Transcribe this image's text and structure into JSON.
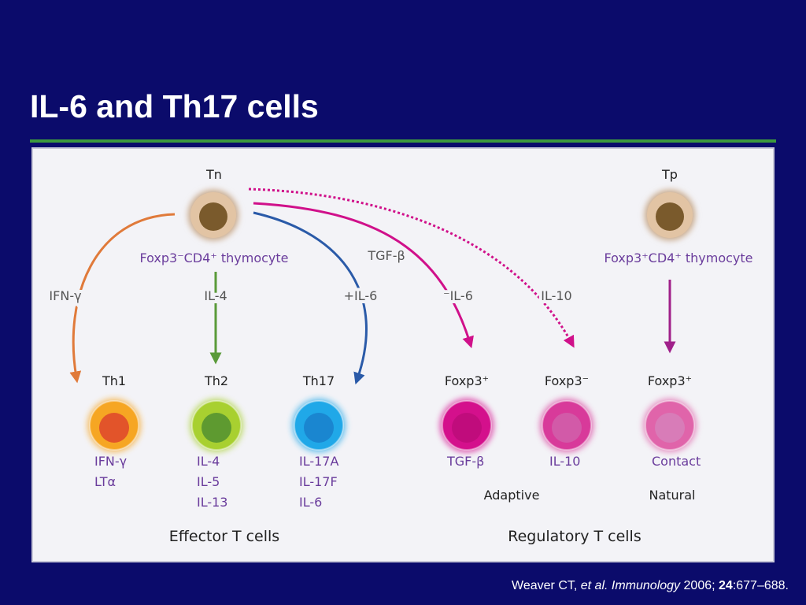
{
  "header": {
    "title": "IL-6 and Th17 cells"
  },
  "diagram": {
    "precursors": [
      {
        "label": "Tn",
        "description": "Foxp3⁻CD4⁺ thymocyte"
      },
      {
        "label": "Tp",
        "description": "Foxp3⁺CD4⁺ thymocyte"
      }
    ],
    "signals": [
      "IFN-γ",
      "IL-4",
      "+IL-6",
      "TGF-β",
      "⁻IL-6",
      "IL-10"
    ],
    "cells": [
      {
        "label": "Th1",
        "products": [
          "IFN-γ",
          "LTα"
        ]
      },
      {
        "label": "Th2",
        "products": [
          "IL-4",
          "IL-5",
          "IL-13"
        ]
      },
      {
        "label": "Th17",
        "products": [
          "IL-17A",
          "IL-17F",
          "IL-6"
        ]
      },
      {
        "label": "Foxp3⁺",
        "products": [
          "TGF-β"
        ]
      },
      {
        "label": "Foxp3⁻",
        "products": [
          "IL-10"
        ]
      },
      {
        "label": "Foxp3⁺",
        "products": [
          "Contact"
        ]
      }
    ],
    "subgroups": [
      "Adaptive",
      "Natural"
    ],
    "groups": [
      "Effector T cells",
      "Regulatory T cells"
    ]
  },
  "citation": {
    "author": "Weaver CT,",
    "etal": "et al.",
    "journal": "Immunology",
    "year": "2006;",
    "volume": "24",
    "pages": ":677–688."
  }
}
